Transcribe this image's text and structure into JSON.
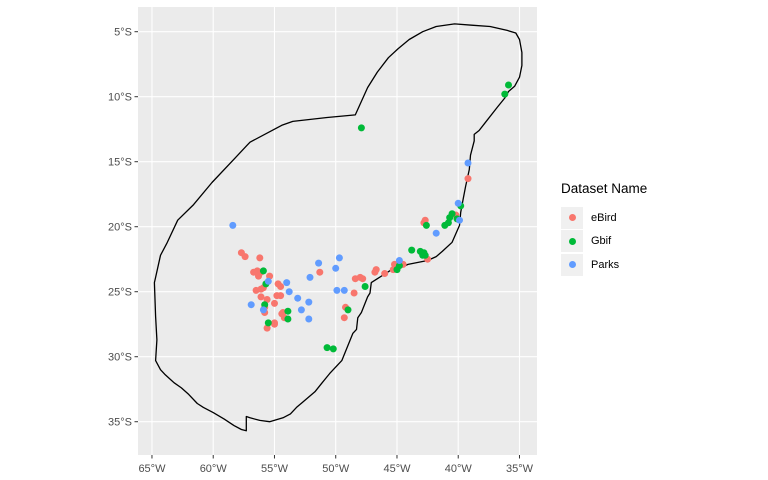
{
  "chart_data": {
    "type": "scatter",
    "subtype": "map-scatter",
    "title": "",
    "xlabel": "",
    "ylabel": "",
    "legend": {
      "title": "Dataset Name",
      "position": "right",
      "key_fill": "#F0F0F0",
      "entries": [
        {
          "label": "eBird",
          "color": "#F8766D"
        },
        {
          "label": "Gbif",
          "color": "#00BA38"
        },
        {
          "label": "Parks",
          "color": "#619CFF"
        }
      ]
    },
    "x_axis": {
      "tick_labels": [
        "65°W",
        "60°W",
        "55°W",
        "50°W",
        "45°W",
        "40°W",
        "35°W"
      ],
      "tick_values": [
        -65,
        -60,
        -55,
        -50,
        -45,
        -40,
        -35
      ],
      "range": [
        -66.14,
        -33.57
      ]
    },
    "y_axis": {
      "tick_labels": [
        "5°S",
        "10°S",
        "15°S",
        "20°S",
        "25°S",
        "30°S",
        "35°S"
      ],
      "tick_values": [
        -5,
        -10,
        -15,
        -20,
        -25,
        -30,
        -35
      ],
      "range": [
        -37.56,
        -3.1
      ]
    },
    "style": {
      "panel_bg": "#EBEBEB",
      "grid_color": "#FFFFFF",
      "grid_width": 1.1,
      "boundary_color": "#000000",
      "boundary_width": 1.3,
      "tick_color": "#333333",
      "tick_label_color": "#4D4D4D",
      "point_radius": 3.5
    },
    "boundary": [
      [
        -48.4,
        -11.4
      ],
      [
        -47.4,
        -9.3
      ],
      [
        -46.6,
        -8.1
      ],
      [
        -45.7,
        -7.0
      ],
      [
        -44.9,
        -6.3
      ],
      [
        -44.0,
        -5.6
      ],
      [
        -42.9,
        -5.0
      ],
      [
        -41.8,
        -4.6
      ],
      [
        -40.3,
        -4.4
      ],
      [
        -38.9,
        -4.5
      ],
      [
        -37.4,
        -4.6
      ],
      [
        -36.0,
        -4.9
      ],
      [
        -35.3,
        -5.1
      ],
      [
        -35.0,
        -5.6
      ],
      [
        -34.8,
        -6.6
      ],
      [
        -34.8,
        -7.6
      ],
      [
        -35.0,
        -8.5
      ],
      [
        -35.4,
        -9.2
      ],
      [
        -35.9,
        -9.6
      ],
      [
        -36.2,
        -10.1
      ],
      [
        -36.8,
        -10.8
      ],
      [
        -37.8,
        -12.0
      ],
      [
        -38.3,
        -12.6
      ],
      [
        -38.7,
        -12.9
      ],
      [
        -38.7,
        -13.4
      ],
      [
        -39.0,
        -14.5
      ],
      [
        -39.1,
        -15.6
      ],
      [
        -39.4,
        -16.9
      ],
      [
        -39.6,
        -17.9
      ],
      [
        -39.8,
        -18.9
      ],
      [
        -39.9,
        -19.9
      ],
      [
        -40.5,
        -21.2
      ],
      [
        -41.3,
        -21.9
      ],
      [
        -41.8,
        -22.3
      ],
      [
        -42.5,
        -22.6
      ],
      [
        -44.1,
        -22.9
      ],
      [
        -44.8,
        -23.2
      ],
      [
        -45.6,
        -23.4
      ],
      [
        -46.6,
        -24.0
      ],
      [
        -47.1,
        -24.3
      ],
      [
        -47.2,
        -25.1
      ],
      [
        -47.4,
        -25.4
      ],
      [
        -47.9,
        -26.6
      ],
      [
        -48.2,
        -27.0
      ],
      [
        -48.3,
        -27.9
      ],
      [
        -48.6,
        -28.2
      ],
      [
        -49.5,
        -30.3
      ],
      [
        -50.5,
        -31.3
      ],
      [
        -51.1,
        -32.0
      ],
      [
        -51.7,
        -32.7
      ],
      [
        -52.7,
        -33.5
      ],
      [
        -53.2,
        -33.9
      ],
      [
        -53.7,
        -34.4
      ],
      [
        -54.3,
        -34.7
      ],
      [
        -55.4,
        -35.0
      ],
      [
        -56.2,
        -34.9
      ],
      [
        -57.0,
        -34.7
      ],
      [
        -57.3,
        -34.6
      ],
      [
        -57.3,
        -35.7
      ],
      [
        -57.7,
        -35.6
      ],
      [
        -58.3,
        -35.3
      ],
      [
        -59.1,
        -34.8
      ],
      [
        -60.0,
        -34.3
      ],
      [
        -60.8,
        -33.9
      ],
      [
        -61.3,
        -33.6
      ],
      [
        -62.0,
        -32.9
      ],
      [
        -62.6,
        -32.4
      ],
      [
        -63.2,
        -32.0
      ],
      [
        -63.9,
        -31.4
      ],
      [
        -64.3,
        -31.0
      ],
      [
        -64.7,
        -30.3
      ],
      [
        -64.6,
        -28.7
      ],
      [
        -64.7,
        -26.9
      ],
      [
        -64.8,
        -24.3
      ],
      [
        -64.7,
        -23.9
      ],
      [
        -64.3,
        -22.2
      ],
      [
        -63.8,
        -21.3
      ],
      [
        -62.9,
        -19.5
      ],
      [
        -61.6,
        -18.3
      ],
      [
        -60.1,
        -16.6
      ],
      [
        -58.2,
        -14.7
      ],
      [
        -57.3,
        -13.8
      ],
      [
        -57.0,
        -13.5
      ],
      [
        -54.4,
        -12.2
      ],
      [
        -53.5,
        -11.9
      ],
      [
        -50.7,
        -11.6
      ],
      [
        -48.4,
        -11.4
      ]
    ],
    "series": [
      {
        "name": "eBird",
        "color": "#F8766D",
        "points": [
          [
            -57.7,
            -22.0
          ],
          [
            -57.4,
            -22.3
          ],
          [
            -56.2,
            -22.4
          ],
          [
            -56.4,
            -23.4
          ],
          [
            -56.1,
            -23.5
          ],
          [
            -56.7,
            -23.5
          ],
          [
            -56.3,
            -23.8
          ],
          [
            -55.4,
            -23.8
          ],
          [
            -54.7,
            -24.4
          ],
          [
            -54.5,
            -24.6
          ],
          [
            -56.5,
            -24.9
          ],
          [
            -56.1,
            -24.8
          ],
          [
            -55.9,
            -24.7
          ],
          [
            -54.8,
            -25.3
          ],
          [
            -54.5,
            -25.3
          ],
          [
            -56.1,
            -25.4
          ],
          [
            -55.6,
            -25.6
          ],
          [
            -55.0,
            -25.9
          ],
          [
            -55.8,
            -26.2
          ],
          [
            -54.3,
            -26.6
          ],
          [
            -54.2,
            -27.0
          ],
          [
            -54.4,
            -26.7
          ],
          [
            -55.8,
            -26.6
          ],
          [
            -55.0,
            -27.4
          ],
          [
            -55.6,
            -27.8
          ],
          [
            -55.0,
            -27.5
          ],
          [
            -51.3,
            -23.5
          ],
          [
            -48.5,
            -25.1
          ],
          [
            -49.2,
            -26.2
          ],
          [
            -49.3,
            -27.0
          ],
          [
            -48.4,
            -24.0
          ],
          [
            -48.0,
            -23.9
          ],
          [
            -47.8,
            -24.0
          ],
          [
            -46.7,
            -23.3
          ],
          [
            -46.8,
            -23.5
          ],
          [
            -46.0,
            -23.6
          ],
          [
            -45.2,
            -22.9
          ],
          [
            -44.5,
            -22.9
          ],
          [
            -45.3,
            -23.3
          ],
          [
            -42.5,
            -22.5
          ],
          [
            -42.7,
            -19.5
          ],
          [
            -42.8,
            -19.7
          ],
          [
            -40.2,
            -19.1
          ],
          [
            -39.2,
            -16.3
          ]
        ]
      },
      {
        "name": "Gbif",
        "color": "#00BA38",
        "points": [
          [
            -47.9,
            -12.4
          ],
          [
            -35.9,
            -9.1
          ],
          [
            -36.2,
            -9.8
          ],
          [
            -39.8,
            -18.4
          ],
          [
            -40.5,
            -19.0
          ],
          [
            -40.7,
            -19.3
          ],
          [
            -40.1,
            -19.4
          ],
          [
            -40.8,
            -19.7
          ],
          [
            -41.1,
            -19.9
          ],
          [
            -42.6,
            -19.9
          ],
          [
            -43.8,
            -21.8
          ],
          [
            -43.1,
            -21.9
          ],
          [
            -42.8,
            -22.0
          ],
          [
            -42.9,
            -22.2
          ],
          [
            -42.7,
            -22.2
          ],
          [
            -44.8,
            -23.0
          ],
          [
            -45.0,
            -23.3
          ],
          [
            -47.6,
            -24.6
          ],
          [
            -49.0,
            -26.4
          ],
          [
            -50.7,
            -29.3
          ],
          [
            -50.2,
            -29.4
          ],
          [
            -55.9,
            -23.4
          ],
          [
            -55.7,
            -24.4
          ],
          [
            -55.8,
            -26.0
          ],
          [
            -53.9,
            -26.5
          ],
          [
            -53.9,
            -27.1
          ],
          [
            -55.5,
            -27.4
          ]
        ]
      },
      {
        "name": "Parks",
        "color": "#619CFF",
        "points": [
          [
            -58.4,
            -19.9
          ],
          [
            -51.4,
            -22.8
          ],
          [
            -49.7,
            -22.4
          ],
          [
            -50.0,
            -23.2
          ],
          [
            -52.1,
            -23.9
          ],
          [
            -55.5,
            -24.2
          ],
          [
            -54.0,
            -24.3
          ],
          [
            -53.8,
            -25.0
          ],
          [
            -49.9,
            -24.9
          ],
          [
            -49.3,
            -24.9
          ],
          [
            -53.1,
            -25.5
          ],
          [
            -52.2,
            -25.8
          ],
          [
            -56.9,
            -26.0
          ],
          [
            -55.9,
            -26.4
          ],
          [
            -52.8,
            -26.4
          ],
          [
            -52.2,
            -27.1
          ],
          [
            -39.2,
            -15.1
          ],
          [
            -40.0,
            -18.2
          ],
          [
            -39.9,
            -19.5
          ],
          [
            -41.8,
            -20.5
          ],
          [
            -44.8,
            -22.6
          ]
        ]
      }
    ]
  }
}
